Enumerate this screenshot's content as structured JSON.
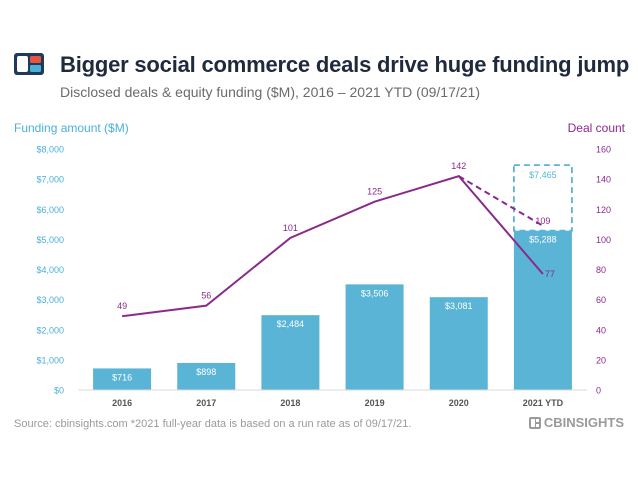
{
  "header": {
    "title": "Bigger social commerce deals drive huge funding jump",
    "subtitle": "Disclosed deals & equity funding ($M), 2016 – 2021 YTD (09/17/21)"
  },
  "footer": {
    "source": "Source: cbinsights.com  *2021 full-year data is based on a run rate as of 09/17/21.",
    "brand": "CBINSIGHTS"
  },
  "colors": {
    "bar": "#5ab4d6",
    "line": "#8a2a8a",
    "left_axis": "#4bb0d8",
    "right_axis": "#8a2a8a",
    "title": "#1f2a3c"
  },
  "chart_data": {
    "type": "bar",
    "categories": [
      "2016",
      "2017",
      "2018",
      "2019",
      "2020",
      "2021 YTD"
    ],
    "series": [
      {
        "name": "Funding amount ($M)",
        "type": "bar",
        "axis": "left",
        "values": [
          716,
          898,
          2484,
          3506,
          3081,
          5288
        ],
        "labels": [
          "$716",
          "$898",
          "$2,484",
          "$3,506",
          "$3,081",
          "$5,288"
        ]
      },
      {
        "name": "Deal count",
        "type": "line",
        "axis": "right",
        "values": [
          49,
          56,
          101,
          125,
          142,
          77
        ],
        "labels": [
          "49",
          "56",
          "101",
          "125",
          "142",
          "77"
        ]
      }
    ],
    "projection": {
      "category": "2021 YTD",
      "funding": 7465,
      "funding_label": "$7,465",
      "deals": 109,
      "deals_label": "109",
      "style": "dashed"
    },
    "ylabel_left": "Funding amount ($M)",
    "ylabel_right": "Deal count",
    "ylim_left": [
      0,
      8000
    ],
    "ylim_right": [
      0,
      160
    ],
    "yticks_left": [
      "$0",
      "$1,000",
      "$2,000",
      "$3,000",
      "$4,000",
      "$5,000",
      "$6,000",
      "$7,000",
      "$8,000"
    ],
    "yticks_right": [
      "0",
      "20",
      "40",
      "60",
      "80",
      "100",
      "120",
      "140",
      "160"
    ],
    "grid": false,
    "legend": "none"
  }
}
